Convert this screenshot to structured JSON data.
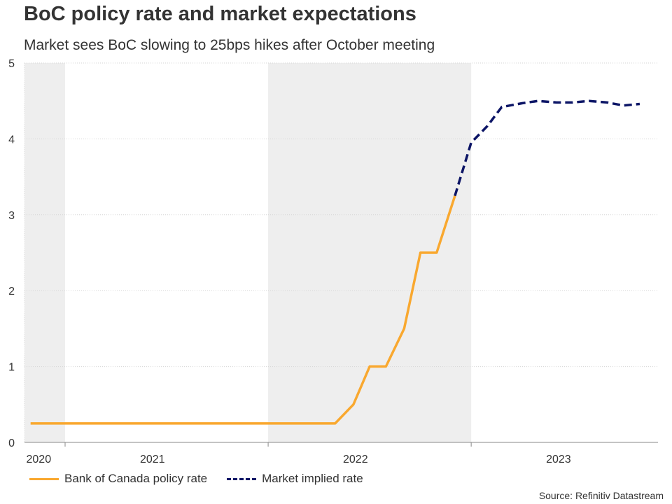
{
  "chart_data": {
    "type": "line",
    "title": "BoC policy rate and market expectations",
    "subtitle": "Market sees BoC slowing to 25bps hikes after October meeting",
    "xlabel": "",
    "ylabel": "",
    "ylim": [
      0,
      5
    ],
    "xlim": [
      2020.05,
      2023.17
    ],
    "y_ticks": [
      "0",
      "1",
      "2",
      "3",
      "4",
      "5"
    ],
    "year_labels": [
      {
        "label": "2020",
        "x": 2020.12
      },
      {
        "label": "2021",
        "x": 2020.68
      },
      {
        "label": "2022",
        "x": 2021.68
      },
      {
        "label": "2023",
        "x": 2022.68
      }
    ],
    "year_boundaries": [
      2020.25,
      2021.25,
      2022.25
    ],
    "shaded_periods": [
      [
        2020.05,
        2020.25
      ],
      [
        2021.25,
        2022.25
      ]
    ],
    "grid": true,
    "series": [
      {
        "name": "Bank of Canada policy rate",
        "color": "#F9A82F",
        "style": "solid",
        "points": [
          [
            2020.08,
            0.25
          ],
          [
            2021.58,
            0.25
          ],
          [
            2021.67,
            0.5
          ],
          [
            2021.75,
            1.0
          ],
          [
            2021.83,
            1.0
          ],
          [
            2021.92,
            1.5
          ],
          [
            2022.0,
            2.5
          ],
          [
            2022.08,
            2.5
          ],
          [
            2022.17,
            3.25
          ]
        ]
      },
      {
        "name": "Market implied rate",
        "color": "#0C1566",
        "style": "dashed",
        "points": [
          [
            2022.17,
            3.25
          ],
          [
            2022.25,
            3.95
          ],
          [
            2022.33,
            4.17
          ],
          [
            2022.4,
            4.42
          ],
          [
            2022.5,
            4.47
          ],
          [
            2022.58,
            4.5
          ],
          [
            2022.67,
            4.48
          ],
          [
            2022.75,
            4.48
          ],
          [
            2022.83,
            4.5
          ],
          [
            2022.92,
            4.48
          ],
          [
            2023.0,
            4.44
          ],
          [
            2023.08,
            4.46
          ]
        ]
      }
    ],
    "legend": [
      "Bank of Canada policy rate",
      "Market implied rate"
    ],
    "source": "Source: Refinitiv Datastream"
  }
}
